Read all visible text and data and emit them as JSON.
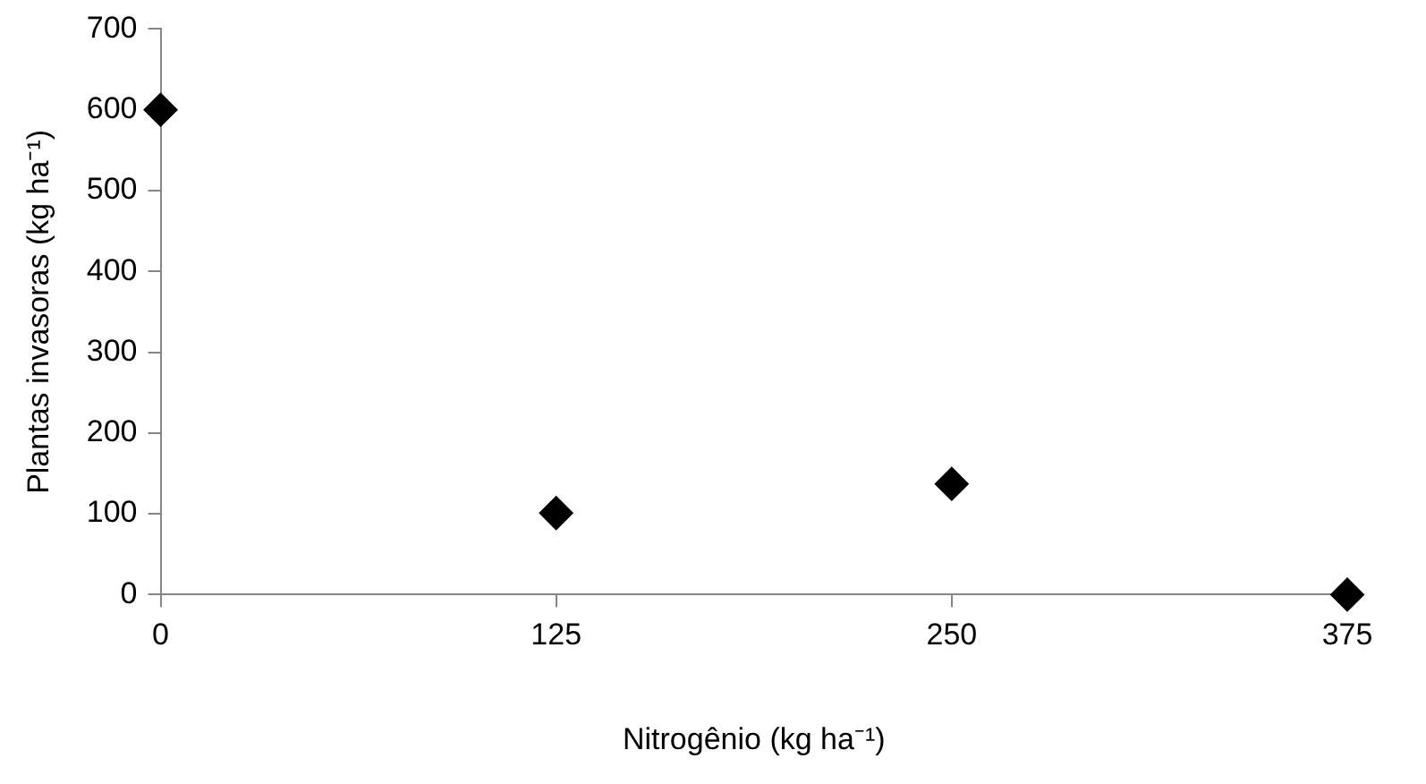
{
  "chart_data": {
    "type": "scatter",
    "xlabel": "Nitrogênio (kg ha⁻¹)",
    "ylabel": "Plantas invasoras (kg ha⁻¹)",
    "x": [
      0,
      125,
      250,
      375
    ],
    "series": [
      {
        "color": "#000000",
        "values": [
          600,
          101,
          137,
          0
        ]
      }
    ],
    "xlim": [
      0,
      375
    ],
    "xticks": [
      0,
      125,
      250,
      375
    ],
    "ylim": [
      0,
      700
    ],
    "yticks": [
      0,
      100,
      200,
      300,
      400,
      500,
      600,
      700
    ],
    "grid": false,
    "legend": false,
    "marker": "diamond"
  }
}
